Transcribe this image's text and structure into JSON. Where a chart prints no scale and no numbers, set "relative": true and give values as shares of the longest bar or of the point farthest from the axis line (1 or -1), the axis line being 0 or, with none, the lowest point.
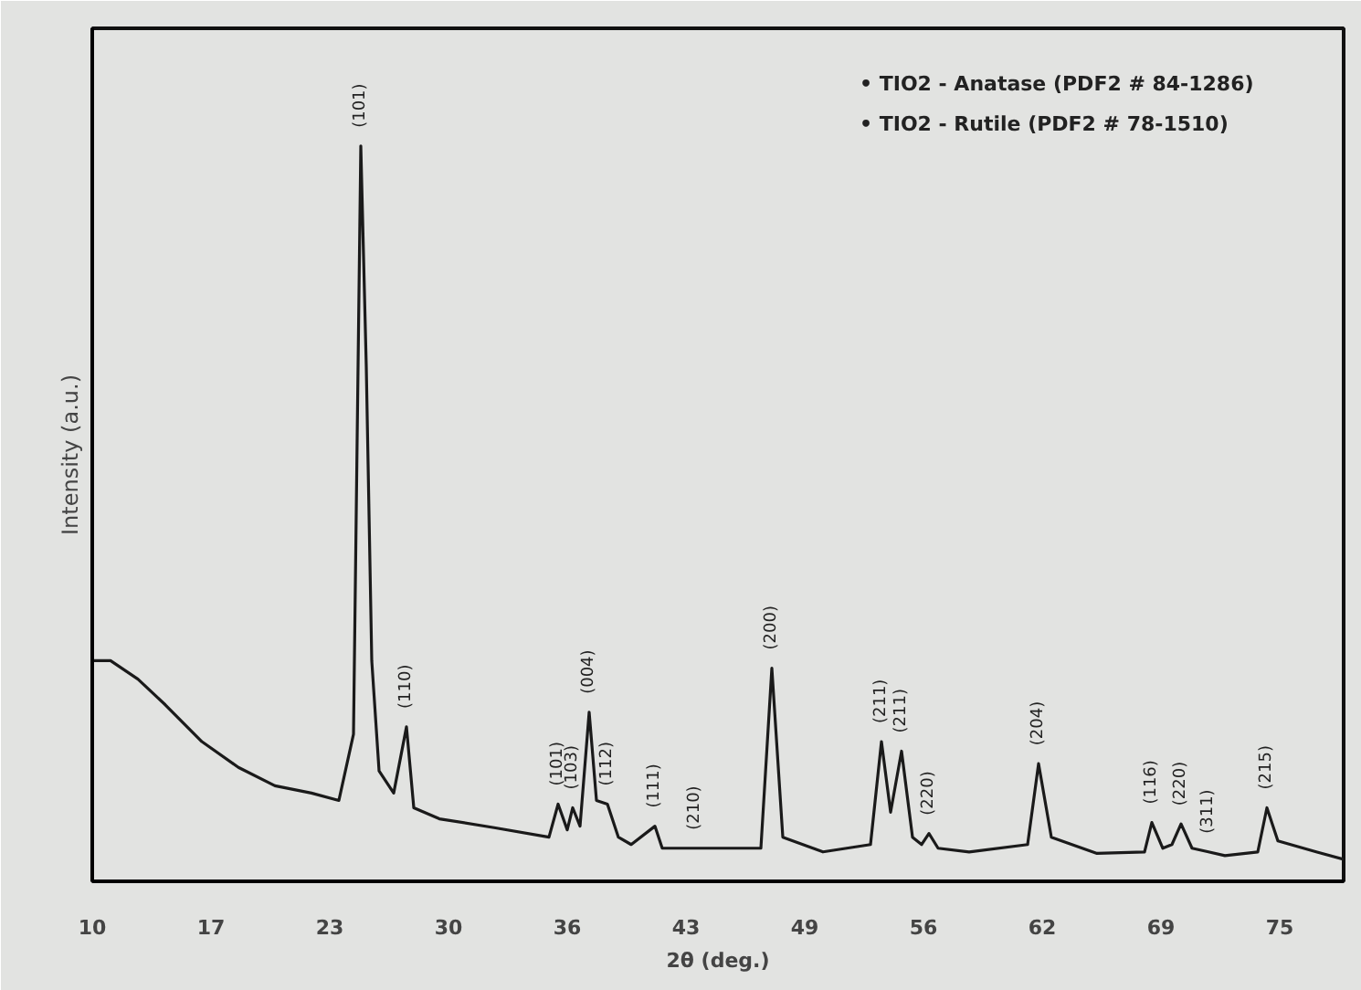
{
  "chart_data": {
    "type": "line",
    "relative": true,
    "xlabel": "2θ (deg.)",
    "ylabel": "Intensity (a.u.)",
    "xlim": [
      10,
      78.5
    ],
    "xticks": [
      10,
      {
        "value": 16.5,
        "label": "17"
      },
      23,
      {
        "value": 29.5,
        "label": "30"
      },
      36,
      {
        "value": 42.5,
        "label": "43"
      },
      49,
      {
        "value": 55.5,
        "label": "56"
      },
      62,
      {
        "value": 68.5,
        "label": "69"
      },
      75
    ],
    "tick_labels": "x",
    "grid": false,
    "marker": "none",
    "line_style": "solid",
    "series": [
      {
        "color": "#1a1a1a",
        "x": [
          10,
          11,
          12.5,
          14,
          16,
          18,
          20,
          22,
          23.5,
          24.3,
          24.7,
          25.0,
          25.3,
          25.7,
          26.5,
          27.2,
          27.6,
          29,
          32,
          35,
          35.5,
          36.0,
          36.3,
          36.7,
          37.2,
          37.6,
          38.2,
          38.8,
          39.5,
          40.8,
          41.2,
          43,
          46.6,
          47.2,
          47.8,
          50,
          52.6,
          53.2,
          53.7,
          54.3,
          54.9,
          55.4,
          55.8,
          56.3,
          58,
          61.2,
          61.8,
          62.5,
          65,
          67.6,
          68.0,
          68.6,
          69.1,
          69.6,
          70.2,
          71.1,
          72,
          73.8,
          74.3,
          74.9,
          77,
          78.5
        ],
        "values": [
          0.3,
          0.3,
          0.275,
          0.24,
          0.19,
          0.155,
          0.13,
          0.12,
          0.11,
          0.2,
          1.0,
          0.7,
          0.3,
          0.15,
          0.12,
          0.21,
          0.1,
          0.085,
          0.073,
          0.06,
          0.105,
          0.07,
          0.1,
          0.075,
          0.23,
          0.11,
          0.105,
          0.06,
          0.05,
          0.075,
          0.045,
          0.045,
          0.045,
          0.29,
          0.06,
          0.04,
          0.05,
          0.19,
          0.094,
          0.177,
          0.06,
          0.05,
          0.065,
          0.045,
          0.04,
          0.05,
          0.16,
          0.06,
          0.038,
          0.04,
          0.08,
          0.045,
          0.05,
          0.078,
          0.045,
          0.04,
          0.035,
          0.04,
          0.1,
          0.055,
          0.04,
          0.03
        ]
      }
    ],
    "annotations": [
      {
        "text": "(101)",
        "x": 24.7,
        "y": 1.0
      },
      {
        "text": "(110)",
        "x": 27.2,
        "y": 0.21
      },
      {
        "text": "(101)",
        "x": 35.5,
        "y": 0.105
      },
      {
        "text": "(103)",
        "x": 36.3,
        "y": 0.1
      },
      {
        "text": "(004)",
        "x": 37.2,
        "y": 0.23
      },
      {
        "text": "(112)",
        "x": 38.2,
        "y": 0.105
      },
      {
        "text": "(111)",
        "x": 40.8,
        "y": 0.075
      },
      {
        "text": "(210)",
        "x": 43,
        "y": 0.045
      },
      {
        "text": "(200)",
        "x": 47.2,
        "y": 0.29
      },
      {
        "text": "(211)",
        "x": 53.2,
        "y": 0.19
      },
      {
        "text": "(211)",
        "x": 54.3,
        "y": 0.177
      },
      {
        "text": "(220)",
        "x": 55.8,
        "y": 0.065
      },
      {
        "text": "(204)",
        "x": 61.8,
        "y": 0.16
      },
      {
        "text": "(116)",
        "x": 68.0,
        "y": 0.08
      },
      {
        "text": "(220)",
        "x": 69.6,
        "y": 0.078
      },
      {
        "text": "(311)",
        "x": 71.1,
        "y": 0.04
      },
      {
        "text": "(215)",
        "x": 74.3,
        "y": 0.1
      },
      "• TIO2 - Anatase  (PDF2 # 84-1286)",
      "• TIO2 - Rutile  (PDF2 # 78-1510)"
    ]
  }
}
